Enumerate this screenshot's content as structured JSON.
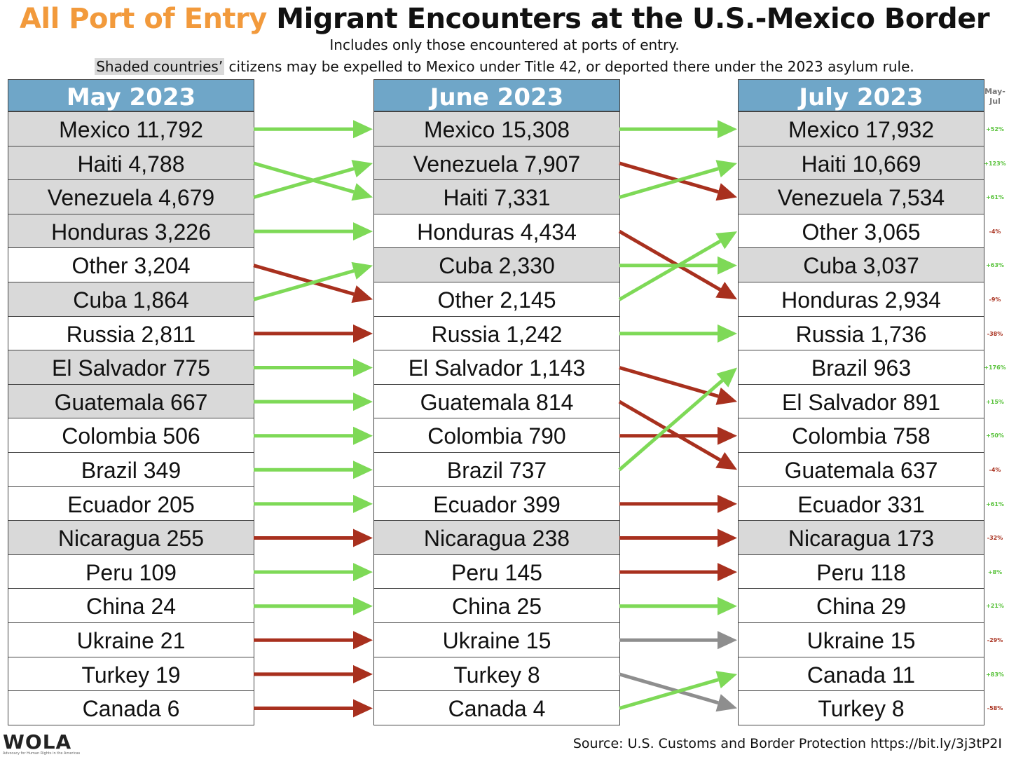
{
  "title": {
    "part1": "All Port of Entry",
    "part2": "Migrant Encounters at the U.S.-Mexico Border"
  },
  "subtitle1": "Includes only those encountered at ports of entry.",
  "subtitle2": {
    "shaded": "Shaded countries’",
    "rest": " citizens may be expelled to Mexico under Title 42, or deported there under the 2023 asylum rule."
  },
  "pct_header": "May-\nJul",
  "source": "Source: U.S. Customs and Border Protection https://bit.ly/3j3tP2I",
  "logo": {
    "text": "WOLA",
    "tagline": "Advocacy for Human Rights in the Americas"
  },
  "colors": {
    "header_bg": "#6fa6c8",
    "shaded_bg": "#d9d9d9",
    "up": "#7ed957",
    "down": "#a8301e",
    "same": "#8e8e8e",
    "title_orange": "#f29a3c"
  },
  "chart_data": {
    "type": "table",
    "columns": [
      {
        "header": "May 2023",
        "rows": [
          {
            "country": "Mexico",
            "value": 11792,
            "label": "Mexico 11,792",
            "shaded": true
          },
          {
            "country": "Haiti",
            "value": 4788,
            "label": "Haiti 4,788",
            "shaded": true
          },
          {
            "country": "Venezuela",
            "value": 4679,
            "label": "Venezuela 4,679",
            "shaded": true
          },
          {
            "country": "Honduras",
            "value": 3226,
            "label": "Honduras 3,226",
            "shaded": true
          },
          {
            "country": "Other",
            "value": 3204,
            "label": "Other 3,204",
            "shaded": false
          },
          {
            "country": "Cuba",
            "value": 1864,
            "label": "Cuba 1,864",
            "shaded": true
          },
          {
            "country": "Russia",
            "value": 2811,
            "label": "Russia 2,811",
            "shaded": false
          },
          {
            "country": "El Salvador",
            "value": 775,
            "label": "El Salvador 775",
            "shaded": true
          },
          {
            "country": "Guatemala",
            "value": 667,
            "label": "Guatemala 667",
            "shaded": true
          },
          {
            "country": "Colombia",
            "value": 506,
            "label": "Colombia 506",
            "shaded": false
          },
          {
            "country": "Brazil",
            "value": 349,
            "label": "Brazil 349",
            "shaded": false
          },
          {
            "country": "Ecuador",
            "value": 205,
            "label": "Ecuador 205",
            "shaded": false
          },
          {
            "country": "Nicaragua",
            "value": 255,
            "label": "Nicaragua 255",
            "shaded": true
          },
          {
            "country": "Peru",
            "value": 109,
            "label": "Peru 109",
            "shaded": false
          },
          {
            "country": "China",
            "value": 24,
            "label": "China 24",
            "shaded": false
          },
          {
            "country": "Ukraine",
            "value": 21,
            "label": "Ukraine 21",
            "shaded": false
          },
          {
            "country": "Turkey",
            "value": 19,
            "label": "Turkey 19",
            "shaded": false
          },
          {
            "country": "Canada",
            "value": 6,
            "label": "Canada 6",
            "shaded": false
          }
        ]
      },
      {
        "header": "June 2023",
        "rows": [
          {
            "country": "Mexico",
            "value": 15308,
            "label": "Mexico 15,308",
            "shaded": true
          },
          {
            "country": "Venezuela",
            "value": 7907,
            "label": "Venezuela 7,907",
            "shaded": true
          },
          {
            "country": "Haiti",
            "value": 7331,
            "label": "Haiti 7,331",
            "shaded": true
          },
          {
            "country": "Honduras",
            "value": 4434,
            "label": "Honduras 4,434",
            "shaded": false
          },
          {
            "country": "Cuba",
            "value": 2330,
            "label": "Cuba 2,330",
            "shaded": true
          },
          {
            "country": "Other",
            "value": 2145,
            "label": "Other 2,145",
            "shaded": false
          },
          {
            "country": "Russia",
            "value": 1242,
            "label": "Russia 1,242",
            "shaded": false
          },
          {
            "country": "El Salvador",
            "value": 1143,
            "label": "El Salvador 1,143",
            "shaded": false
          },
          {
            "country": "Guatemala",
            "value": 814,
            "label": "Guatemala 814",
            "shaded": false
          },
          {
            "country": "Colombia",
            "value": 790,
            "label": "Colombia 790",
            "shaded": false
          },
          {
            "country": "Brazil",
            "value": 737,
            "label": "Brazil 737",
            "shaded": false
          },
          {
            "country": "Ecuador",
            "value": 399,
            "label": "Ecuador 399",
            "shaded": false
          },
          {
            "country": "Nicaragua",
            "value": 238,
            "label": "Nicaragua 238",
            "shaded": true
          },
          {
            "country": "Peru",
            "value": 145,
            "label": "Peru 145",
            "shaded": false
          },
          {
            "country": "China",
            "value": 25,
            "label": "China 25",
            "shaded": false
          },
          {
            "country": "Ukraine",
            "value": 15,
            "label": "Ukraine 15",
            "shaded": false
          },
          {
            "country": "Turkey",
            "value": 8,
            "label": "Turkey 8",
            "shaded": false
          },
          {
            "country": "Canada",
            "value": 4,
            "label": "Canada 4",
            "shaded": false
          }
        ]
      },
      {
        "header": "July 2023",
        "rows": [
          {
            "country": "Mexico",
            "value": 17932,
            "label": "Mexico 17,932",
            "shaded": true
          },
          {
            "country": "Haiti",
            "value": 10669,
            "label": "Haiti 10,669",
            "shaded": true
          },
          {
            "country": "Venezuela",
            "value": 7534,
            "label": "Venezuela 7,534",
            "shaded": true
          },
          {
            "country": "Other",
            "value": 3065,
            "label": "Other 3,065",
            "shaded": false
          },
          {
            "country": "Cuba",
            "value": 3037,
            "label": "Cuba 3,037",
            "shaded": true
          },
          {
            "country": "Honduras",
            "value": 2934,
            "label": "Honduras 2,934",
            "shaded": false
          },
          {
            "country": "Russia",
            "value": 1736,
            "label": "Russia 1,736",
            "shaded": false
          },
          {
            "country": "Brazil",
            "value": 963,
            "label": "Brazil 963",
            "shaded": false
          },
          {
            "country": "El Salvador",
            "value": 891,
            "label": "El Salvador 891",
            "shaded": false
          },
          {
            "country": "Colombia",
            "value": 758,
            "label": "Colombia 758",
            "shaded": false
          },
          {
            "country": "Guatemala",
            "value": 637,
            "label": "Guatemala 637",
            "shaded": false
          },
          {
            "country": "Ecuador",
            "value": 331,
            "label": "Ecuador 331",
            "shaded": false
          },
          {
            "country": "Nicaragua",
            "value": 173,
            "label": "Nicaragua 173",
            "shaded": true
          },
          {
            "country": "Peru",
            "value": 118,
            "label": "Peru 118",
            "shaded": false
          },
          {
            "country": "China",
            "value": 29,
            "label": "China 29",
            "shaded": false
          },
          {
            "country": "Ukraine",
            "value": 15,
            "label": "Ukraine 15",
            "shaded": false
          },
          {
            "country": "Canada",
            "value": 11,
            "label": "Canada 11",
            "shaded": false
          },
          {
            "country": "Turkey",
            "value": 8,
            "label": "Turkey 8",
            "shaded": false
          }
        ]
      }
    ],
    "pct_change_may_jul": [
      {
        "text": "+52%",
        "direction": "up"
      },
      {
        "text": "+123%",
        "direction": "up"
      },
      {
        "text": "+61%",
        "direction": "up"
      },
      {
        "text": "-4%",
        "direction": "down"
      },
      {
        "text": "+63%",
        "direction": "up"
      },
      {
        "text": "-9%",
        "direction": "down"
      },
      {
        "text": "-38%",
        "direction": "down"
      },
      {
        "text": "+176%",
        "direction": "up"
      },
      {
        "text": "+15%",
        "direction": "up"
      },
      {
        "text": "+50%",
        "direction": "up"
      },
      {
        "text": "-4%",
        "direction": "down"
      },
      {
        "text": "+61%",
        "direction": "up"
      },
      {
        "text": "-32%",
        "direction": "down"
      },
      {
        "text": "+8%",
        "direction": "up"
      },
      {
        "text": "+21%",
        "direction": "up"
      },
      {
        "text": "-29%",
        "direction": "down"
      },
      {
        "text": "+83%",
        "direction": "up"
      },
      {
        "text": "-58%",
        "direction": "down"
      }
    ]
  }
}
